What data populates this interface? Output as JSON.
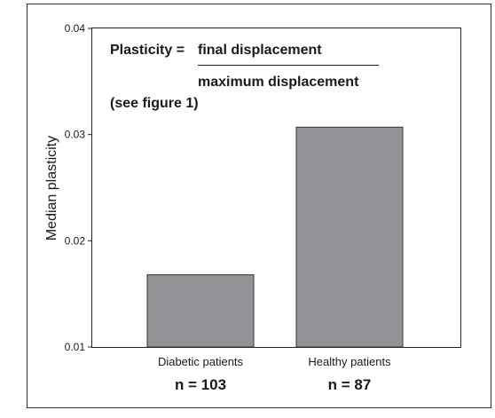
{
  "chart_data": {
    "type": "bar",
    "categories": [
      "Diabetic patients",
      "Healthy patients"
    ],
    "values": [
      0.0168,
      0.0307
    ],
    "sample_sizes": [
      "n = 103",
      "n = 87"
    ],
    "ylabel": "Median plasticity",
    "xlabel": "",
    "title": "",
    "ylim": [
      0.01,
      0.04
    ],
    "yticks": [
      "0.01",
      "0.02",
      "0.03",
      "0.04"
    ],
    "grid": false,
    "bar_color": "#929396",
    "annotation": {
      "prefix": "Plasticity =",
      "numerator": "final displacement",
      "denominator": "maximum displacement",
      "note": "(see figure 1)"
    }
  }
}
